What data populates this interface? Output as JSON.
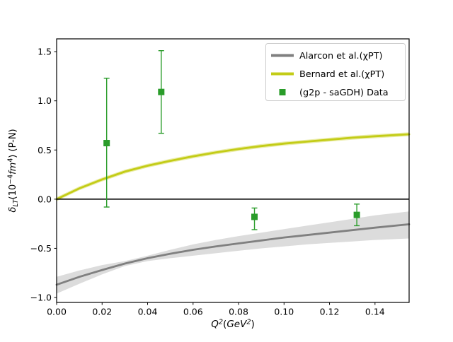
{
  "figure": {
    "background": "#ffffff"
  },
  "chart_data": {
    "type": "line",
    "title": "",
    "xlabel": "Q²(GeV²)",
    "ylabel": "δ_LT(10⁻⁴fm⁴) (P-N)",
    "xlabel_parts": [
      {
        "text": "Q",
        "italic": true
      },
      {
        "text": "2",
        "script": "sup",
        "italic": true
      },
      {
        "text": "(",
        "italic": false
      },
      {
        "text": "GeV",
        "italic": true
      },
      {
        "text": "2",
        "script": "sup",
        "italic": true
      },
      {
        "text": ")",
        "italic": false
      }
    ],
    "ylabel_parts": [
      {
        "text": "δ",
        "italic": true
      },
      {
        "text": "LT",
        "script": "sub",
        "italic": true
      },
      {
        "text": "(10",
        "italic": false
      },
      {
        "text": "−4",
        "script": "sup",
        "italic": false
      },
      {
        "text": "fm",
        "italic": true
      },
      {
        "text": "4",
        "script": "sup",
        "italic": false
      },
      {
        "text": ") (P-N)",
        "italic": false
      }
    ],
    "xlim": [
      0,
      0.155
    ],
    "ylim": [
      -1.05,
      1.63
    ],
    "grid": false,
    "zero_line": {
      "y": 0,
      "color": "#000000"
    },
    "x_ticks": {
      "values": [
        0,
        0.02,
        0.04,
        0.06,
        0.08,
        0.1,
        0.12,
        0.14
      ],
      "labels": [
        "0.00",
        "0.02",
        "0.04",
        "0.06",
        "0.08",
        "0.10",
        "0.12",
        "0.14"
      ]
    },
    "y_ticks": {
      "values": [
        -1.0,
        -0.5,
        0.0,
        0.5,
        1.0,
        1.5
      ],
      "labels": [
        "−1.0",
        "−0.5",
        "0.0",
        "0.5",
        "1.0",
        "1.5"
      ]
    },
    "x_grid": [
      0,
      0.01,
      0.02,
      0.03,
      0.04,
      0.05,
      0.06,
      0.07,
      0.08,
      0.09,
      0.1,
      0.11,
      0.12,
      0.13,
      0.14,
      0.155
    ],
    "series": [
      {
        "id": "alarcon",
        "name": "Alarcon et al.(χPT)",
        "kind": "line_band",
        "color": "#808080",
        "band_color": "#9a9a9a",
        "band_opacity": 0.35,
        "y": [
          -0.87,
          -0.79,
          -0.72,
          -0.655,
          -0.6,
          -0.555,
          -0.515,
          -0.48,
          -0.45,
          -0.42,
          -0.39,
          -0.365,
          -0.34,
          -0.315,
          -0.29,
          -0.255
        ],
        "band_lo": [
          -0.96,
          -0.86,
          -0.765,
          -0.68,
          -0.63,
          -0.6,
          -0.575,
          -0.55,
          -0.525,
          -0.5,
          -0.48,
          -0.46,
          -0.445,
          -0.43,
          -0.415,
          -0.4
        ],
        "band_hi": [
          -0.79,
          -0.725,
          -0.67,
          -0.63,
          -0.575,
          -0.515,
          -0.46,
          -0.415,
          -0.375,
          -0.34,
          -0.305,
          -0.27,
          -0.235,
          -0.2,
          -0.165,
          -0.125
        ]
      },
      {
        "id": "bernard",
        "name": "Bernard et al.(χPT)",
        "kind": "line_band",
        "color": "#c3cc17",
        "band_color": "#d8dc55",
        "band_opacity": 0.5,
        "y": [
          0,
          0.11,
          0.2,
          0.28,
          0.34,
          0.39,
          0.435,
          0.475,
          0.51,
          0.54,
          0.565,
          0.585,
          0.605,
          0.625,
          0.64,
          0.66
        ],
        "band_lo": [
          -0.02,
          0.09,
          0.18,
          0.26,
          0.32,
          0.37,
          0.415,
          0.455,
          0.49,
          0.52,
          0.545,
          0.565,
          0.585,
          0.605,
          0.62,
          0.64
        ],
        "band_hi": [
          0.02,
          0.13,
          0.22,
          0.3,
          0.36,
          0.41,
          0.455,
          0.495,
          0.53,
          0.56,
          0.585,
          0.605,
          0.625,
          0.645,
          0.66,
          0.68
        ]
      },
      {
        "id": "g2p-data",
        "name": "(g2p - saGDH) Data",
        "kind": "scatter_err",
        "color": "#2a9c2a",
        "marker": "square",
        "points": [
          {
            "x": 0.022,
            "y": 0.57,
            "y_lo": -0.08,
            "y_hi": 1.23
          },
          {
            "x": 0.046,
            "y": 1.09,
            "y_lo": 0.67,
            "y_hi": 1.51
          },
          {
            "x": 0.087,
            "y": -0.18,
            "y_lo": -0.31,
            "y_hi": -0.09
          },
          {
            "x": 0.132,
            "y": -0.16,
            "y_lo": -0.27,
            "y_hi": -0.05
          }
        ]
      }
    ],
    "legend": {
      "location": "upper right",
      "border_color": "#cccccc",
      "background": "#ffffff"
    }
  }
}
